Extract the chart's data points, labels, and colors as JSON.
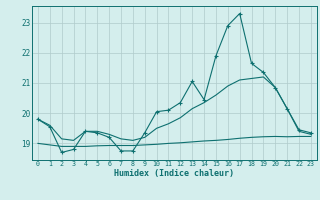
{
  "x": [
    0,
    1,
    2,
    3,
    4,
    5,
    6,
    7,
    8,
    9,
    10,
    11,
    12,
    13,
    14,
    15,
    16,
    17,
    18,
    19,
    20,
    21,
    22,
    23
  ],
  "line_jagged": [
    19.8,
    19.55,
    18.7,
    18.8,
    19.4,
    19.35,
    19.2,
    18.75,
    18.75,
    19.35,
    20.05,
    20.1,
    20.35,
    21.05,
    20.45,
    21.9,
    22.9,
    23.3,
    21.65,
    21.35,
    20.85,
    20.15,
    19.45,
    19.35
  ],
  "line_rising": [
    19.8,
    19.6,
    19.15,
    19.1,
    19.4,
    19.4,
    19.3,
    19.15,
    19.1,
    19.2,
    19.5,
    19.65,
    19.85,
    20.15,
    20.35,
    20.6,
    20.9,
    21.1,
    21.15,
    21.2,
    20.85,
    20.15,
    19.4,
    19.3
  ],
  "line_flat": [
    19.0,
    18.95,
    18.9,
    18.9,
    18.9,
    18.92,
    18.93,
    18.93,
    18.93,
    18.95,
    18.97,
    19.0,
    19.02,
    19.05,
    19.08,
    19.1,
    19.13,
    19.17,
    19.2,
    19.22,
    19.23,
    19.22,
    19.23,
    19.23
  ],
  "color": "#0e7070",
  "bg_color": "#d4eeed",
  "grid_color": "#b0cbcb",
  "yticks": [
    19,
    20,
    21,
    22,
    23
  ],
  "xlim": [
    -0.5,
    23.5
  ],
  "ylim": [
    18.45,
    23.55
  ],
  "xlabel": "Humidex (Indice chaleur)"
}
